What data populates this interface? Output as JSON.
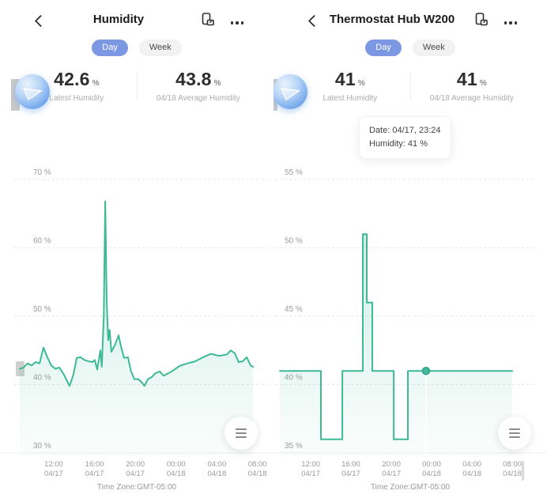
{
  "theme": {
    "accent_blue": "#7d98e2",
    "teal_line": "#3db996",
    "text_primary": "#2d2d2d",
    "text_secondary": "#9b9b9b"
  },
  "panels": [
    {
      "header": {
        "back_icon": "chevron-left",
        "title": "Humidity",
        "export_icon": "export-board",
        "more_icon": "ellipsis"
      },
      "tabs": [
        {
          "label": "Day",
          "active": true
        },
        {
          "label": "Week",
          "active": false
        }
      ],
      "device_icon": "device-avatar",
      "stats": [
        {
          "value": "42.6",
          "unit": "%",
          "label": "Latest Humidity"
        },
        {
          "value": "43.8",
          "unit": "%",
          "label": "04/18 Average Humidity"
        }
      ],
      "menu_button_icon": "hamburger",
      "timezone_label": "Time Zone:GMT-05:00",
      "chart_data": {
        "type": "area",
        "series_name": "Humidity",
        "y_suffix": " %",
        "y_ticks": [
          70,
          60,
          50,
          40,
          30
        ],
        "ylim": [
          30,
          70
        ],
        "grid": "horizontal-dashed",
        "x_ticks": [
          {
            "f": 0.139,
            "time": "12:00",
            "date": "04/17"
          },
          {
            "f": 0.306,
            "time": "16:00",
            "date": "04/17"
          },
          {
            "f": 0.473,
            "time": "20:00",
            "date": "04/17"
          },
          {
            "f": 0.64,
            "time": "00:00",
            "date": "04/18"
          },
          {
            "f": 0.807,
            "time": "04:00",
            "date": "04/18"
          },
          {
            "f": 0.973,
            "time": "08:00",
            "date": "04/18"
          }
        ],
        "points": [
          [
            0.0,
            42.3
          ],
          [
            0.016,
            42.5
          ],
          [
            0.032,
            43.1
          ],
          [
            0.049,
            42.8
          ],
          [
            0.065,
            43.3
          ],
          [
            0.081,
            43.1
          ],
          [
            0.097,
            45.4
          ],
          [
            0.113,
            44.0
          ],
          [
            0.129,
            42.8
          ],
          [
            0.146,
            42.3
          ],
          [
            0.162,
            42.5
          ],
          [
            0.18,
            41.5
          ],
          [
            0.204,
            39.8
          ],
          [
            0.22,
            41.5
          ],
          [
            0.233,
            43.9
          ],
          [
            0.249,
            44.0
          ],
          [
            0.265,
            43.6
          ],
          [
            0.282,
            43.4
          ],
          [
            0.298,
            43.3
          ],
          [
            0.307,
            43.6
          ],
          [
            0.317,
            42.2
          ],
          [
            0.33,
            45.0
          ],
          [
            0.336,
            42.6
          ],
          [
            0.344,
            50.0
          ],
          [
            0.35,
            66.8
          ],
          [
            0.356,
            52.0
          ],
          [
            0.362,
            46.5
          ],
          [
            0.368,
            48.0
          ],
          [
            0.375,
            44.8
          ],
          [
            0.39,
            45.8
          ],
          [
            0.405,
            47.2
          ],
          [
            0.415,
            45.5
          ],
          [
            0.427,
            43.9
          ],
          [
            0.443,
            44.0
          ],
          [
            0.455,
            42.0
          ],
          [
            0.469,
            40.8
          ],
          [
            0.485,
            40.8
          ],
          [
            0.5,
            40.3
          ],
          [
            0.511,
            39.8
          ],
          [
            0.525,
            40.8
          ],
          [
            0.54,
            41.1
          ],
          [
            0.557,
            41.7
          ],
          [
            0.573,
            41.9
          ],
          [
            0.589,
            41.3
          ],
          [
            0.605,
            41.6
          ],
          [
            0.621,
            41.9
          ],
          [
            0.654,
            42.7
          ],
          [
            0.686,
            43.1
          ],
          [
            0.718,
            43.4
          ],
          [
            0.751,
            44.0
          ],
          [
            0.783,
            44.5
          ],
          [
            0.816,
            44.2
          ],
          [
            0.848,
            44.4
          ],
          [
            0.864,
            45.0
          ],
          [
            0.88,
            44.6
          ],
          [
            0.896,
            43.3
          ],
          [
            0.913,
            43.4
          ],
          [
            0.929,
            44.0
          ],
          [
            0.945,
            42.8
          ],
          [
            0.955,
            42.6
          ]
        ]
      }
    },
    {
      "header": {
        "back_icon": "chevron-left",
        "title": "Thermostat Hub W200",
        "export_icon": "export-board",
        "more_icon": "ellipsis"
      },
      "tabs": [
        {
          "label": "Day",
          "active": true
        },
        {
          "label": "Week",
          "active": false
        }
      ],
      "device_icon": "device-avatar",
      "stats": [
        {
          "value": "41",
          "unit": "%",
          "label": "Latest Humidity"
        },
        {
          "value": "41",
          "unit": "%",
          "label": "04/18 Average Humidity"
        }
      ],
      "tooltip": {
        "line1": "Date: 04/17, 23:24",
        "line2": "Humidity: 41 %"
      },
      "menu_button_icon": "hamburger",
      "timezone_label": "Time Zone:GMT-05:00",
      "chart_data": {
        "type": "step-area",
        "series_name": "Humidity",
        "y_suffix": " %",
        "y_ticks": [
          55,
          50,
          45,
          40,
          35
        ],
        "ylim": [
          35,
          55
        ],
        "grid": "horizontal-dashed",
        "x_ticks": [
          {
            "f": 0.133,
            "time": "12:00",
            "date": "04/17"
          },
          {
            "f": 0.306,
            "time": "16:00",
            "date": "04/17"
          },
          {
            "f": 0.48,
            "time": "20:00",
            "date": "04/17"
          },
          {
            "f": 0.653,
            "time": "00:00",
            "date": "04/18"
          },
          {
            "f": 0.827,
            "time": "04:00",
            "date": "04/18"
          },
          {
            "f": 1.0,
            "time": "08:00",
            "date": "04/18"
          }
        ],
        "points": [
          [
            0.0,
            41
          ],
          [
            0.177,
            41
          ],
          [
            0.177,
            36
          ],
          [
            0.269,
            36
          ],
          [
            0.269,
            41
          ],
          [
            0.357,
            41
          ],
          [
            0.357,
            51
          ],
          [
            0.374,
            51
          ],
          [
            0.374,
            46
          ],
          [
            0.398,
            46
          ],
          [
            0.398,
            41
          ],
          [
            0.49,
            41
          ],
          [
            0.49,
            36
          ],
          [
            0.551,
            36
          ],
          [
            0.551,
            41
          ],
          [
            1.0,
            41
          ]
        ],
        "marker": {
          "f": 0.629,
          "value": 41,
          "date": "04/17",
          "time": "23:24"
        }
      }
    }
  ]
}
